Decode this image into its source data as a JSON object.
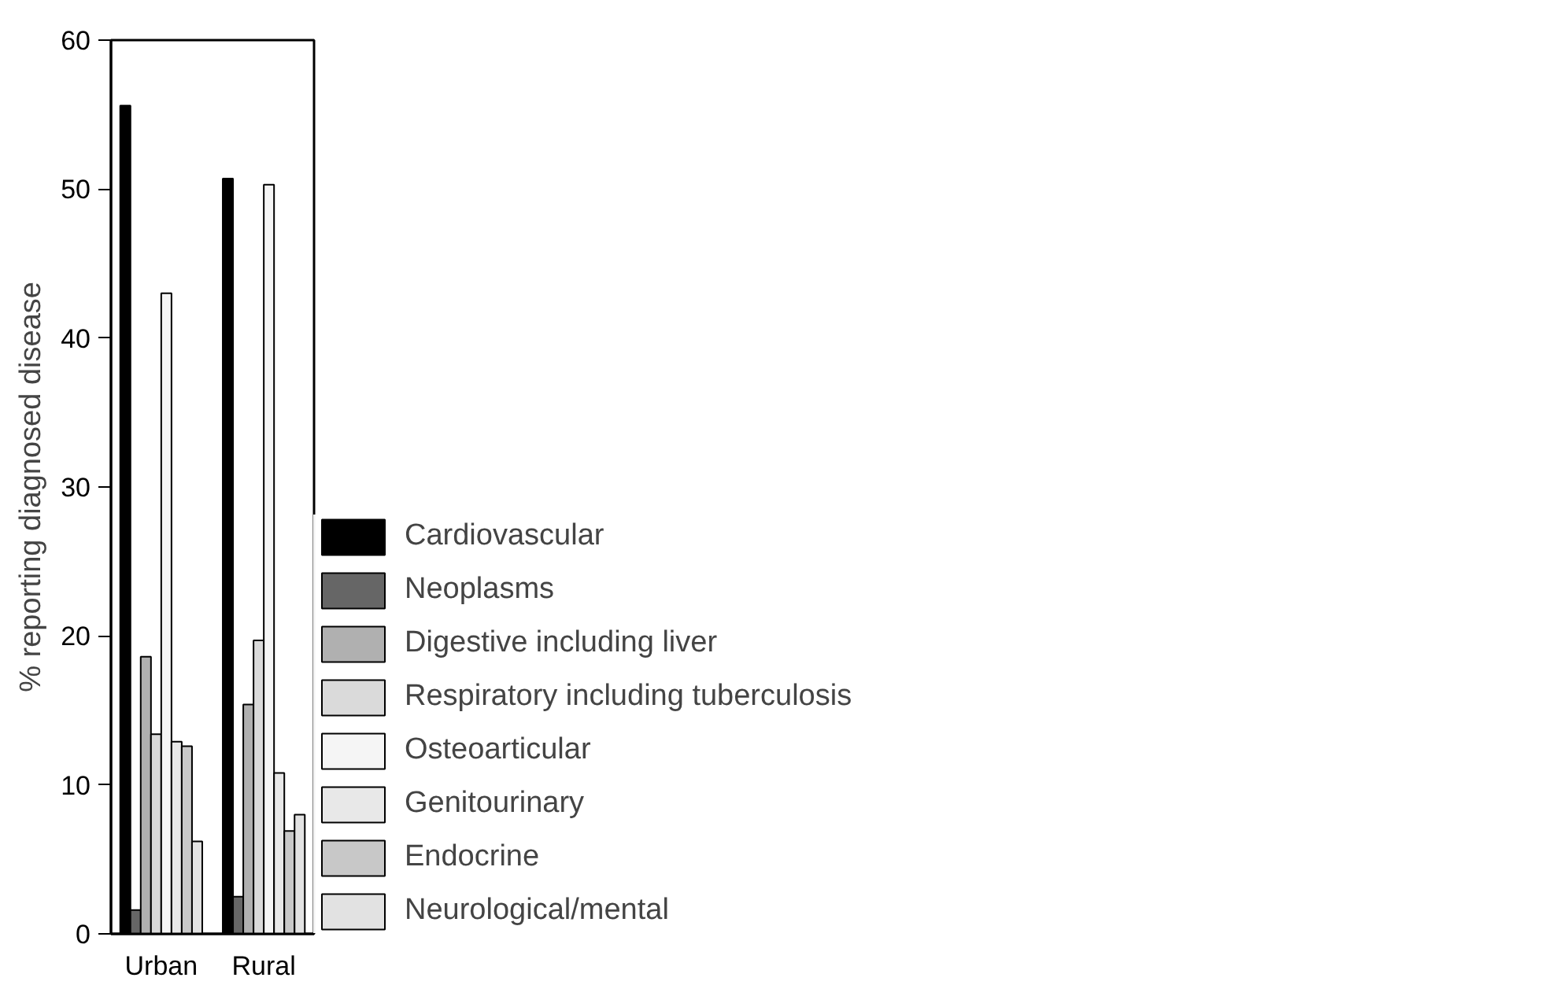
{
  "chart_data": {
    "type": "bar",
    "ylabel": "% reporting diagnosed disease",
    "categories": [
      "Urban",
      "Rural"
    ],
    "series": [
      {
        "name": "Cardiovascular",
        "color": "#000000",
        "values": [
          55.6,
          50.7
        ]
      },
      {
        "name": "Neoplasms",
        "color": "#666666",
        "values": [
          1.6,
          2.5
        ]
      },
      {
        "name": "Digestive including liver",
        "color": "#b0b0b0",
        "values": [
          18.6,
          15.4
        ]
      },
      {
        "name": "Respiratory including tuberculosis",
        "color": "#dadada",
        "values": [
          13.4,
          19.7
        ]
      },
      {
        "name": "Osteoarticular",
        "color": "#f5f5f5",
        "values": [
          43.0,
          50.3
        ]
      },
      {
        "name": "Genitourinary",
        "color": "#e8e8e8",
        "values": [
          12.9,
          10.8
        ]
      },
      {
        "name": "Endocrine",
        "color": "#c8c8c8",
        "values": [
          12.6,
          6.9
        ]
      },
      {
        "name": "Neurological/mental",
        "color": "#e2e2e2",
        "values": [
          6.2,
          8.0
        ]
      }
    ],
    "ylim": [
      0,
      60
    ],
    "yticks": [
      0,
      10,
      20,
      30,
      40,
      50,
      60
    ],
    "grid": false,
    "legend": "right"
  }
}
